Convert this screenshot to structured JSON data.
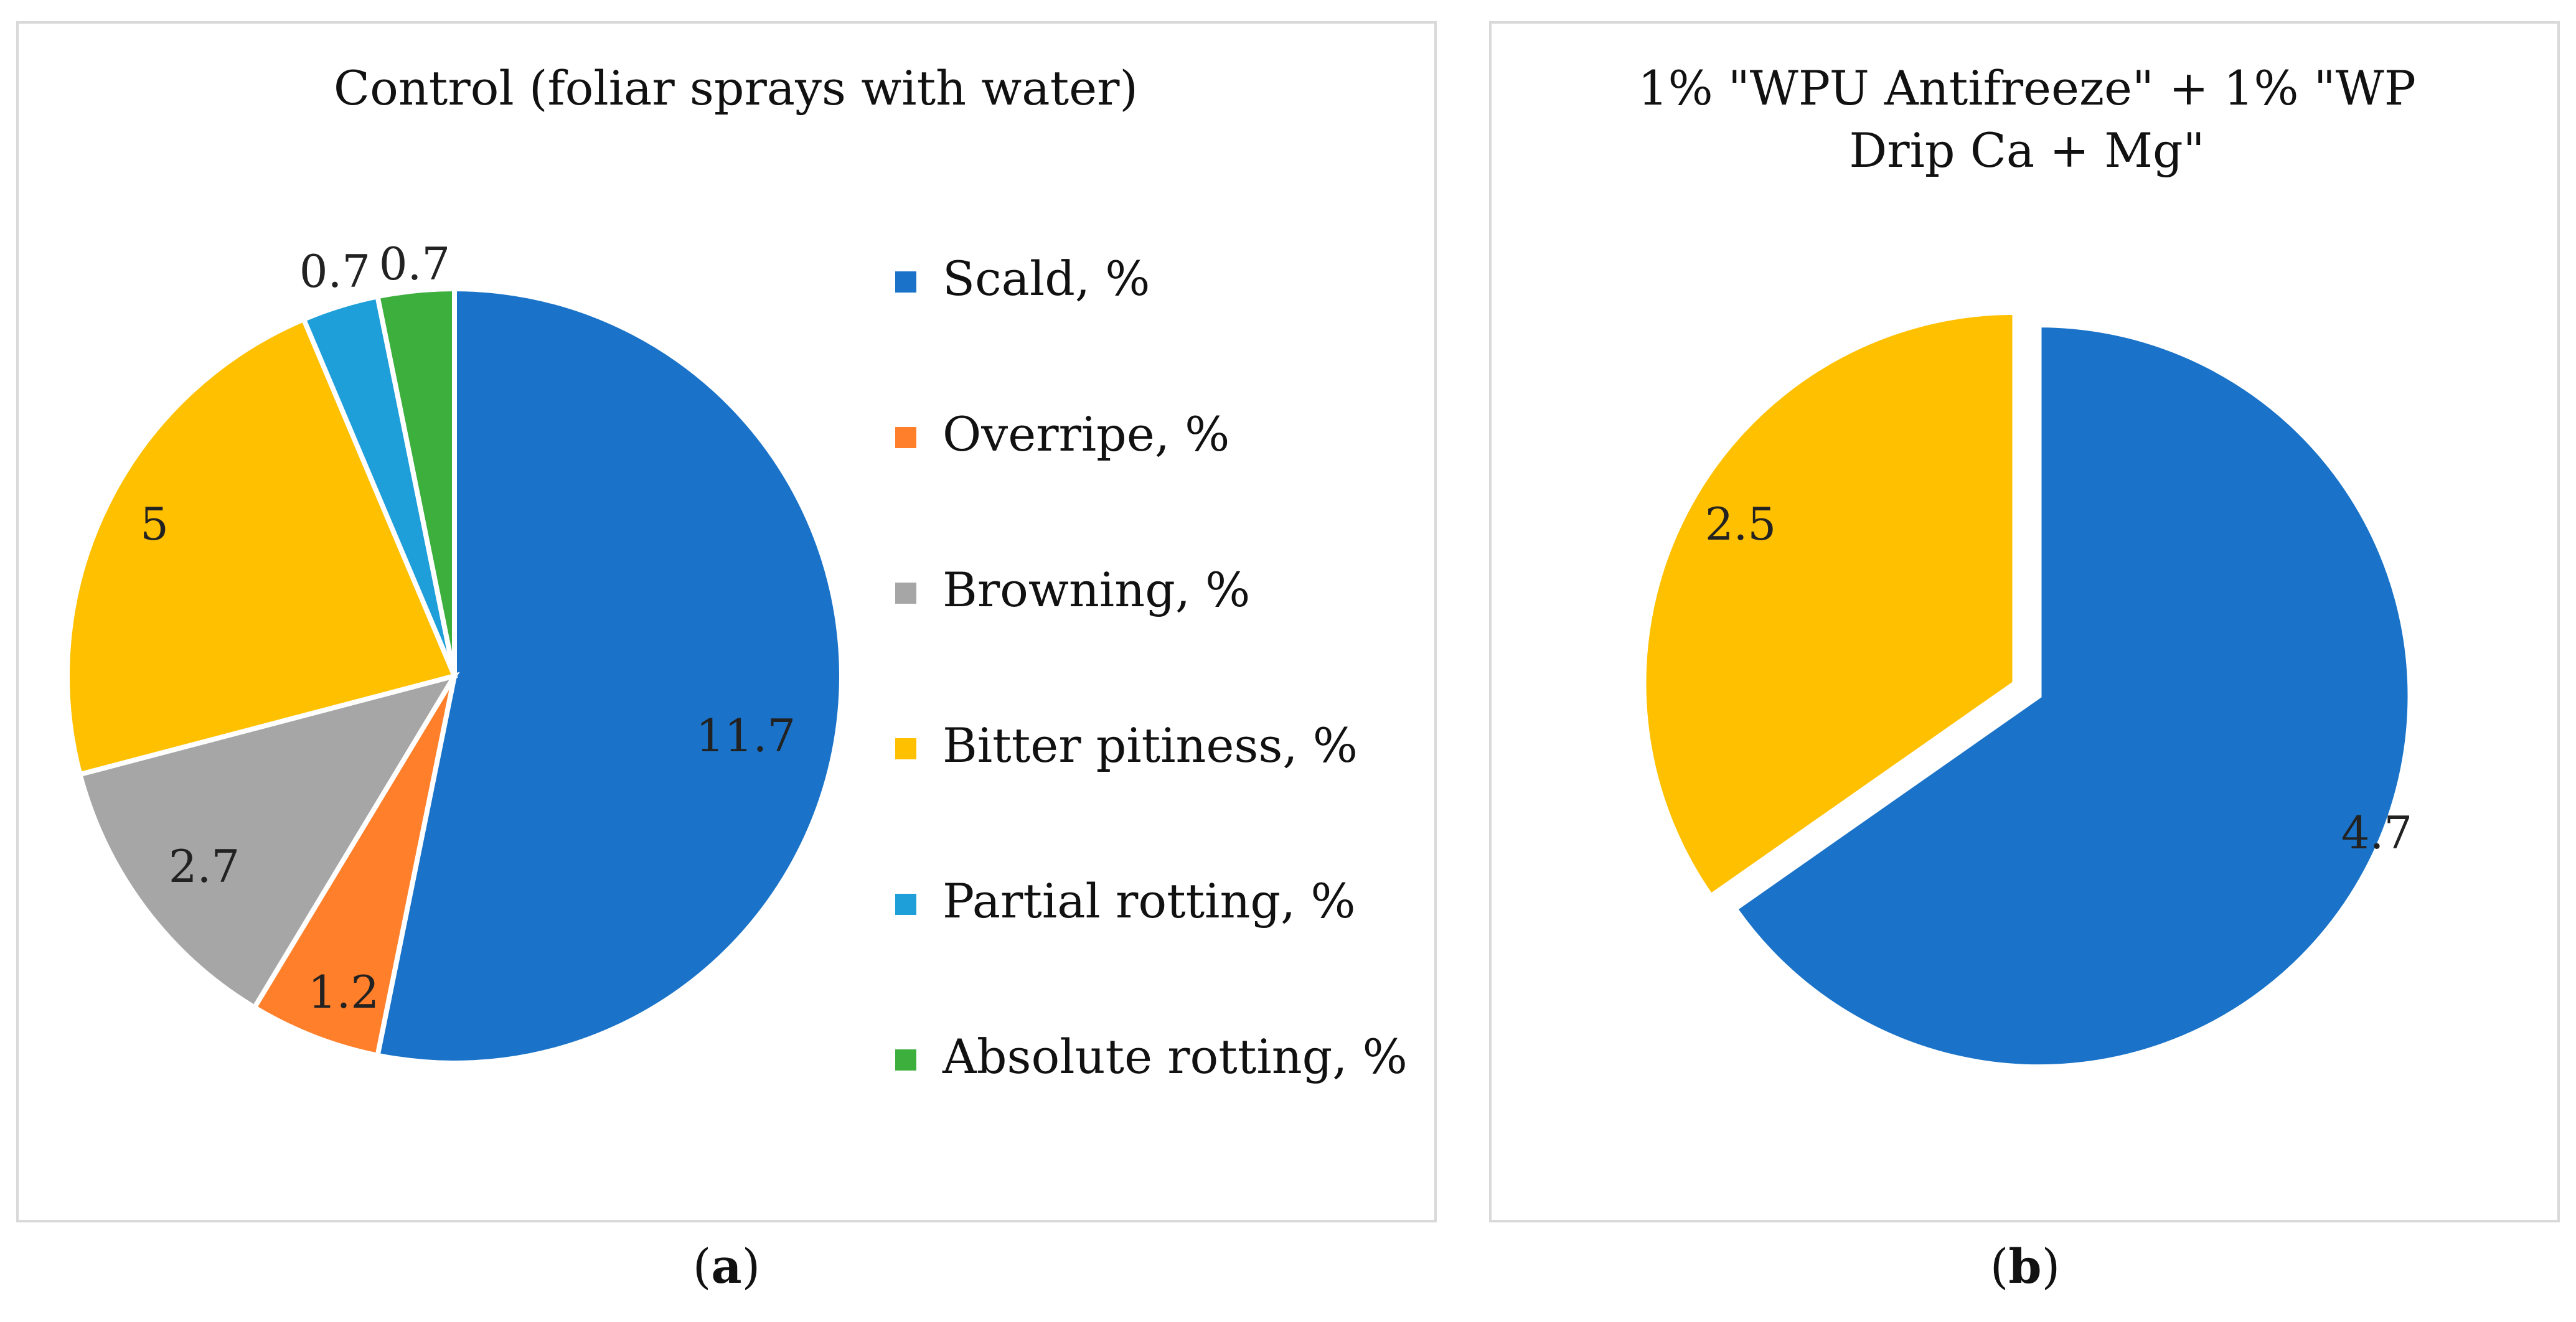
{
  "chart_data": [
    {
      "type": "pie",
      "title": "Control (foliar sprays with water)",
      "categories": [
        "Scald, %",
        "Overripe, %",
        "Browning, %",
        "Bitter pitiness, %",
        "Partial rotting, %",
        "Absolute rotting, %"
      ],
      "values": [
        11.7,
        1.2,
        2.7,
        5,
        0.7,
        0.7
      ],
      "data_labels": [
        "11.7",
        "1.2",
        "2.7",
        "5",
        "0.7",
        "0.7"
      ],
      "colors": [
        "#1a73c8",
        "#ff7f2a",
        "#a6a6a6",
        "#ffc000",
        "#1e9fda",
        "#3daf3d"
      ],
      "legend": "right",
      "caption_letter": "a"
    },
    {
      "type": "pie",
      "title_lines": [
        "1% \"WPU Antifreeze\" + 1% \"WP",
        "Drip Ca + Mg\""
      ],
      "categories": [
        "Scald, %",
        "Bitter pitiness, %"
      ],
      "values": [
        4.7,
        2.5
      ],
      "data_labels": [
        "4.7",
        "2.5"
      ],
      "colors": [
        "#1a73c8",
        "#ffc000"
      ],
      "exploded": true,
      "legend": "none",
      "caption_letter": "b"
    }
  ]
}
